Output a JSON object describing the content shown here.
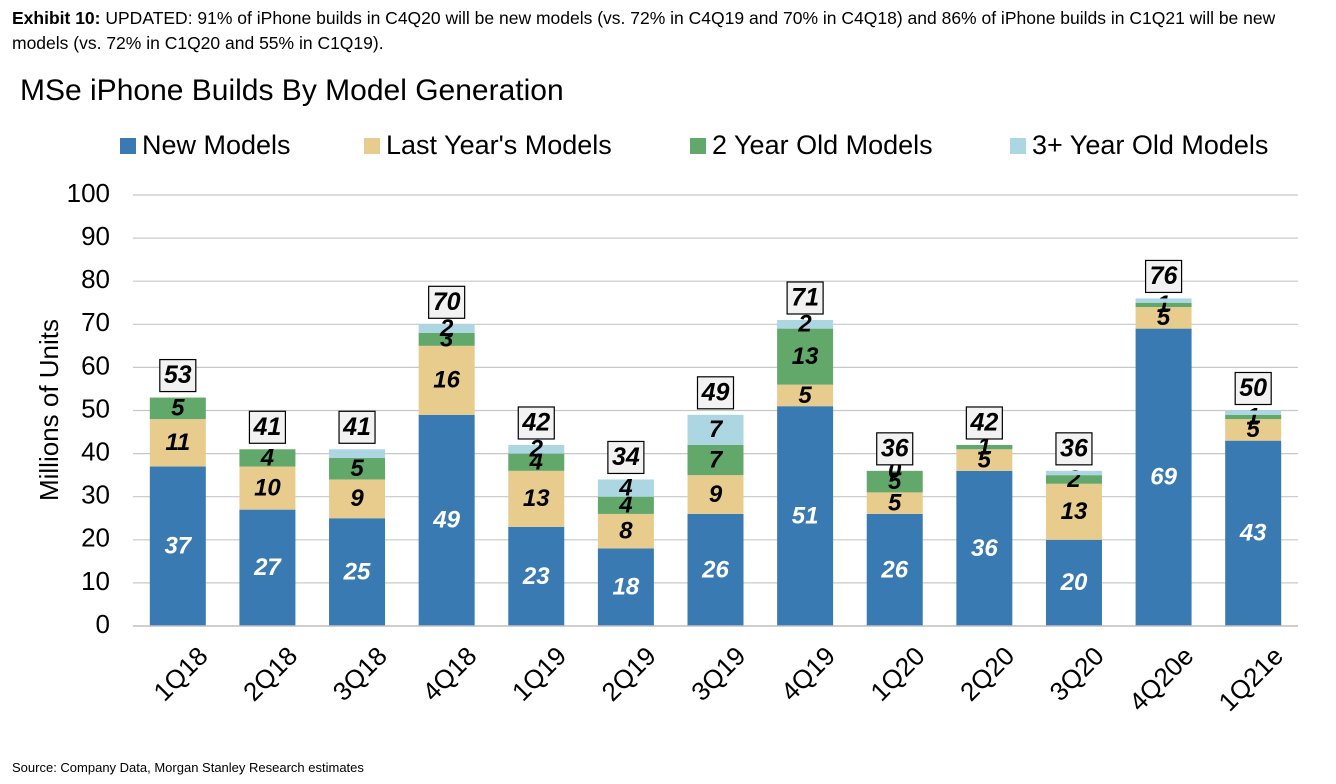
{
  "exhibit": {
    "label": "Exhibit 10:",
    "text": "UPDATED: 91% of iPhone builds in C4Q20 will be new models (vs. 72% in C4Q19 and 70% in C4Q18) and 86% of iPhone builds in C1Q21 will be new models (vs. 72% in C1Q20 and 55% in C1Q19)."
  },
  "source": "Source: Company Data, Morgan Stanley Research estimates",
  "chart_data": {
    "type": "bar",
    "stacked": true,
    "title": "MSe iPhone Builds By Model Generation",
    "ylabel": "Millions of Units",
    "xlabel": "",
    "ylim": [
      0,
      100
    ],
    "yticks": [
      0,
      10,
      20,
      30,
      40,
      50,
      60,
      70,
      80,
      90,
      100
    ],
    "grid": true,
    "legend_position": "top",
    "categories": [
      "1Q18",
      "2Q18",
      "3Q18",
      "4Q18",
      "1Q19",
      "2Q19",
      "3Q19",
      "4Q19",
      "1Q20",
      "2Q20",
      "3Q20",
      "4Q20e",
      "1Q21e"
    ],
    "series": [
      {
        "name": "New Models",
        "color": "#3a7ab2",
        "label_color": "#ffffff",
        "values": [
          37,
          27,
          25,
          49,
          23,
          18,
          26,
          51,
          26,
          36,
          20,
          69,
          43
        ]
      },
      {
        "name": "Last Year's Models",
        "color": "#e8cc8e",
        "label_color": "#000000",
        "values": [
          11,
          10,
          9,
          16,
          13,
          8,
          9,
          5,
          5,
          5,
          13,
          5,
          5
        ]
      },
      {
        "name": "2 Year Old Models",
        "color": "#62a86a",
        "label_color": "#000000",
        "values": [
          5,
          4,
          5,
          3,
          4,
          4,
          7,
          13,
          5,
          1,
          2,
          1,
          1
        ]
      },
      {
        "name": "3+ Year Old Models",
        "color": "#acd6e1",
        "label_color": "#000000",
        "values": [
          0,
          0,
          2,
          2,
          2,
          4,
          7,
          2,
          0,
          0,
          1,
          1,
          1
        ]
      }
    ],
    "totals": [
      53,
      41,
      41,
      70,
      42,
      34,
      49,
      71,
      36,
      42,
      36,
      76,
      50
    ],
    "segment_labels": [
      [
        "37",
        "11",
        "5",
        null
      ],
      [
        "27",
        "10",
        "4",
        null
      ],
      [
        "25",
        "9",
        "5",
        null
      ],
      [
        "49",
        "16",
        "3",
        "2"
      ],
      [
        "23",
        "13",
        "4",
        "2"
      ],
      [
        "18",
        "8",
        "4",
        "4"
      ],
      [
        "26",
        "9",
        "7",
        "7"
      ],
      [
        "51",
        "5",
        "13",
        "2"
      ],
      [
        "26",
        "5",
        "5",
        "0"
      ],
      [
        "36",
        "5",
        "1",
        null
      ],
      [
        "20",
        "13",
        "2",
        null
      ],
      [
        "69",
        "5",
        "1",
        null
      ],
      [
        "43",
        "5",
        "1",
        null
      ]
    ]
  }
}
